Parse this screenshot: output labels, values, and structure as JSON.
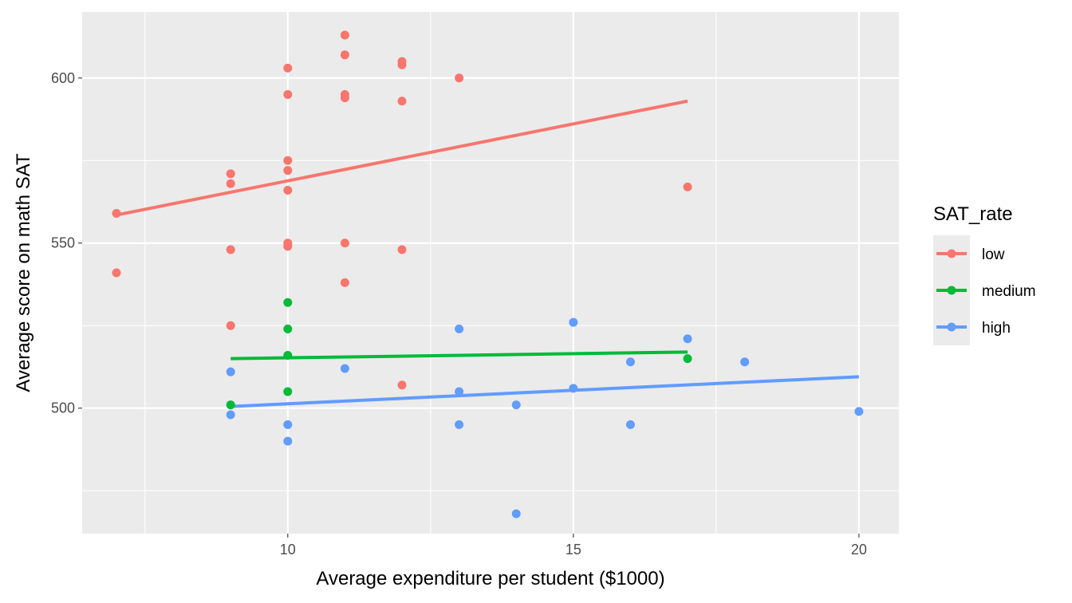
{
  "chart_data": {
    "type": "scatter",
    "title": "",
    "xlabel": "Average expenditure per student ($1000)",
    "ylabel": "Average score on math SAT",
    "xlim": [
      6.4,
      20.7
    ],
    "ylim": [
      462,
      620
    ],
    "x_ticks": [
      10,
      15,
      20
    ],
    "y_ticks": [
      500,
      550,
      600
    ],
    "x_minor": [
      7.5,
      12.5,
      17.5
    ],
    "y_minor": [
      475,
      525,
      575
    ],
    "grid": true,
    "legend": {
      "title": "SAT_rate",
      "position": "right"
    },
    "colors": {
      "panel": "#ebebeb",
      "grid": "#ffffff"
    },
    "series": [
      {
        "name": "low",
        "color": "#F8766D",
        "points": [
          [
            7,
            559
          ],
          [
            7,
            541
          ],
          [
            9,
            571
          ],
          [
            9,
            568
          ],
          [
            9,
            548
          ],
          [
            9,
            525
          ],
          [
            10,
            603
          ],
          [
            10,
            595
          ],
          [
            10,
            575
          ],
          [
            10,
            572
          ],
          [
            10,
            566
          ],
          [
            10,
            550
          ],
          [
            10,
            549
          ],
          [
            11,
            613
          ],
          [
            11,
            607
          ],
          [
            11,
            595
          ],
          [
            11,
            594
          ],
          [
            11,
            550
          ],
          [
            11,
            538
          ],
          [
            12,
            605
          ],
          [
            12,
            604
          ],
          [
            12,
            593
          ],
          [
            12,
            548
          ],
          [
            12,
            507
          ],
          [
            13,
            600
          ],
          [
            17,
            567
          ]
        ],
        "fit": [
          [
            7,
            558.5
          ],
          [
            17,
            593
          ]
        ]
      },
      {
        "name": "medium",
        "color": "#00BA38",
        "points": [
          [
            9,
            501
          ],
          [
            10,
            532
          ],
          [
            10,
            524
          ],
          [
            10,
            516
          ],
          [
            10,
            505
          ],
          [
            17,
            515
          ]
        ],
        "fit": [
          [
            9,
            515
          ],
          [
            17,
            517
          ]
        ]
      },
      {
        "name": "high",
        "color": "#619CFF",
        "points": [
          [
            9,
            511
          ],
          [
            9,
            498
          ],
          [
            10,
            495
          ],
          [
            10,
            490
          ],
          [
            11,
            512
          ],
          [
            13,
            524
          ],
          [
            13,
            505
          ],
          [
            13,
            495
          ],
          [
            14,
            501
          ],
          [
            14,
            468
          ],
          [
            15,
            526
          ],
          [
            15,
            506
          ],
          [
            16,
            514
          ],
          [
            16,
            495
          ],
          [
            17,
            521
          ],
          [
            18,
            514
          ],
          [
            20,
            499
          ]
        ],
        "fit": [
          [
            9,
            500.5
          ],
          [
            20,
            509.5
          ]
        ]
      }
    ]
  }
}
